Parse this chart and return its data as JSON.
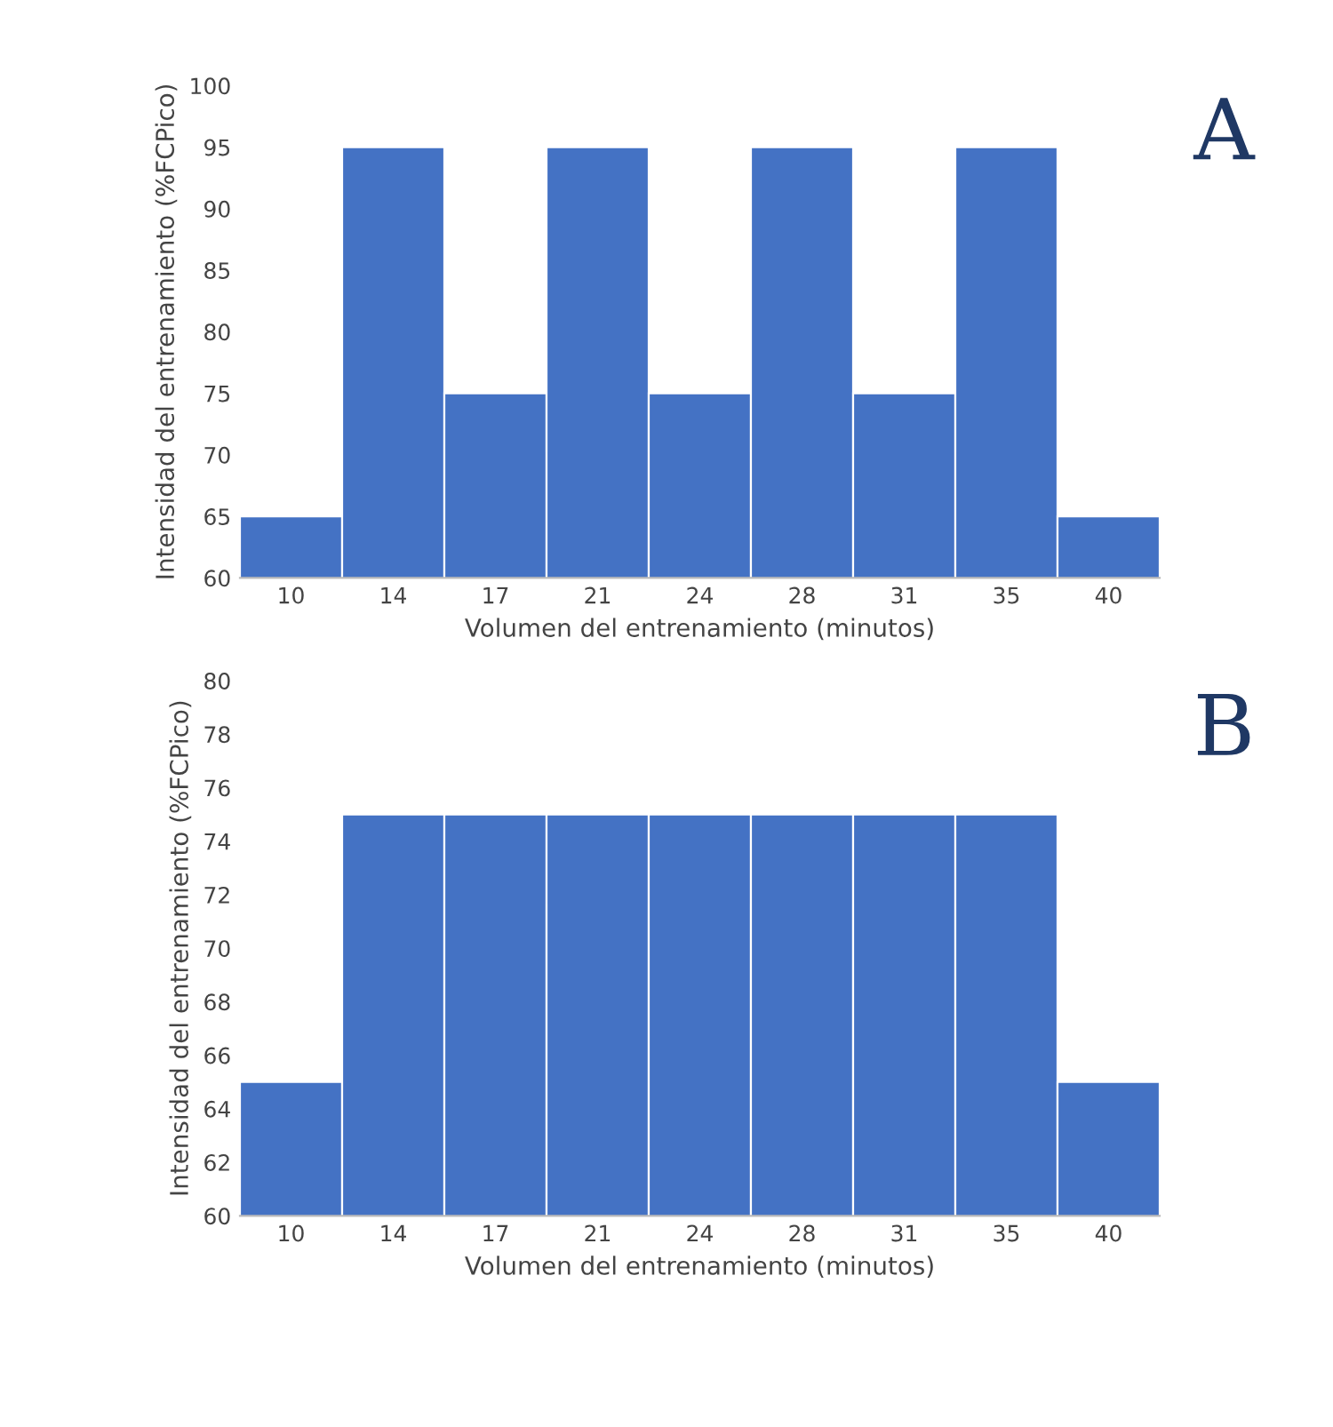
{
  "chart_data": [
    {
      "type": "bar",
      "categories": [
        "10",
        "14",
        "17",
        "21",
        "24",
        "28",
        "31",
        "35",
        "40"
      ],
      "values": [
        65,
        95,
        75,
        95,
        75,
        95,
        75,
        95,
        65
      ],
      "color": "#4472c4",
      "ylim": [
        60,
        100
      ],
      "yticks": [
        60,
        65,
        70,
        75,
        80,
        85,
        90,
        95,
        100
      ],
      "xlabel": "Volumen del entrenamiento (minutos)",
      "ylabel": "Intensidad del entrenamiento (%FCPico)",
      "annotations": [
        "A"
      ],
      "grid": false
    },
    {
      "type": "bar",
      "categories": [
        "10",
        "14",
        "17",
        "21",
        "24",
        "28",
        "31",
        "35",
        "40"
      ],
      "values": [
        65,
        75,
        75,
        75,
        75,
        75,
        75,
        75,
        65
      ],
      "color": "#4472c4",
      "ylim": [
        60,
        80
      ],
      "yticks": [
        60,
        62,
        64,
        66,
        68,
        70,
        72,
        74,
        76,
        78,
        80
      ],
      "xlabel": "Volumen del entrenamiento (minutos)",
      "ylabel": "Intensidad del entrenamiento (%FCPico)",
      "annotations": [
        "B"
      ],
      "grid": false
    }
  ]
}
